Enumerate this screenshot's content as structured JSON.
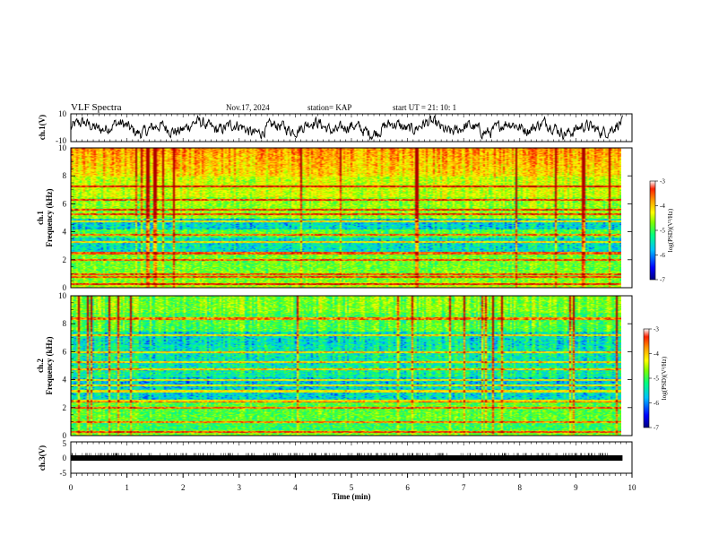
{
  "header": {
    "title": "VLF Spectra",
    "date": "Nov.17, 2024",
    "station": "station= KAP",
    "start_ut": "start  UT  =   21: 10: 1"
  },
  "colors": {
    "spectrogram_scale": [
      "#000080",
      "#0000ff",
      "#00c0ff",
      "#00ff80",
      "#80ff00",
      "#ffff00",
      "#ffa000",
      "#ff2000",
      "#b00000"
    ],
    "waveform": "#000000"
  },
  "chart_data": [
    {
      "type": "line",
      "name": "ch1-waveform",
      "ylabel": "ch.1(V)",
      "ylim": [
        -10,
        10
      ],
      "yticks": [
        "10",
        "-10"
      ],
      "xlim": [
        0,
        10
      ],
      "description_values": "noisy waveform centered near 0 V, amplitude roughly +/-6 V"
    },
    {
      "type": "heatmap",
      "name": "ch1-spectrogram",
      "ylabel": "ch.1\nFrequency (kHz)",
      "ylabel_line1": "ch.1",
      "ylabel_line2": "Frequency (kHz)",
      "ylim": [
        0,
        10
      ],
      "yticks": [
        "0",
        "2",
        "4",
        "6",
        "8",
        "10"
      ],
      "xlim": [
        0,
        9.83
      ],
      "colorbar": {
        "label": "log(PSD)(V²/Hz)",
        "range": [
          -7,
          -3
        ],
        "ticks": [
          "-3",
          "-4",
          "-5",
          "-6",
          "-7"
        ]
      },
      "strong_lines_khz": [
        0.3,
        0.8,
        1.0,
        2.0,
        2.5,
        3.3,
        3.8,
        4.8,
        5.3,
        5.6,
        6.3,
        7.3
      ]
    },
    {
      "type": "heatmap",
      "name": "ch2-spectrogram",
      "ylabel_line1": "ch.2",
      "ylabel_line2": "Frequency (kHz)",
      "ylim": [
        0,
        10
      ],
      "yticks": [
        "0",
        "2",
        "4",
        "6",
        "8",
        "10"
      ],
      "xlim": [
        0,
        9.83
      ],
      "colorbar": {
        "label": "log(PSD)(V²/Hz)",
        "range": [
          -7,
          -3
        ],
        "ticks": [
          "-3",
          "-4",
          "-5",
          "-6",
          "-7"
        ]
      },
      "strong_lines_khz": [
        0.3,
        1.0,
        2.0,
        2.5,
        3.2,
        3.6,
        4.0,
        4.8,
        5.3,
        6.0,
        7.2,
        8.4
      ]
    },
    {
      "type": "line",
      "name": "ch3-waveform",
      "ylabel": "ch.3(V)",
      "ylim": [
        -5,
        5
      ],
      "yticks": [
        "5",
        "0",
        "-5"
      ],
      "xlim": [
        0,
        10
      ],
      "description_values": "constant level near -1 V with dense thin spikes"
    }
  ],
  "xaxis": {
    "label": "Time (min)",
    "ticks": [
      "0",
      "1",
      "2",
      "3",
      "4",
      "5",
      "6",
      "7",
      "8",
      "9",
      "10"
    ],
    "range": [
      0,
      10
    ]
  }
}
